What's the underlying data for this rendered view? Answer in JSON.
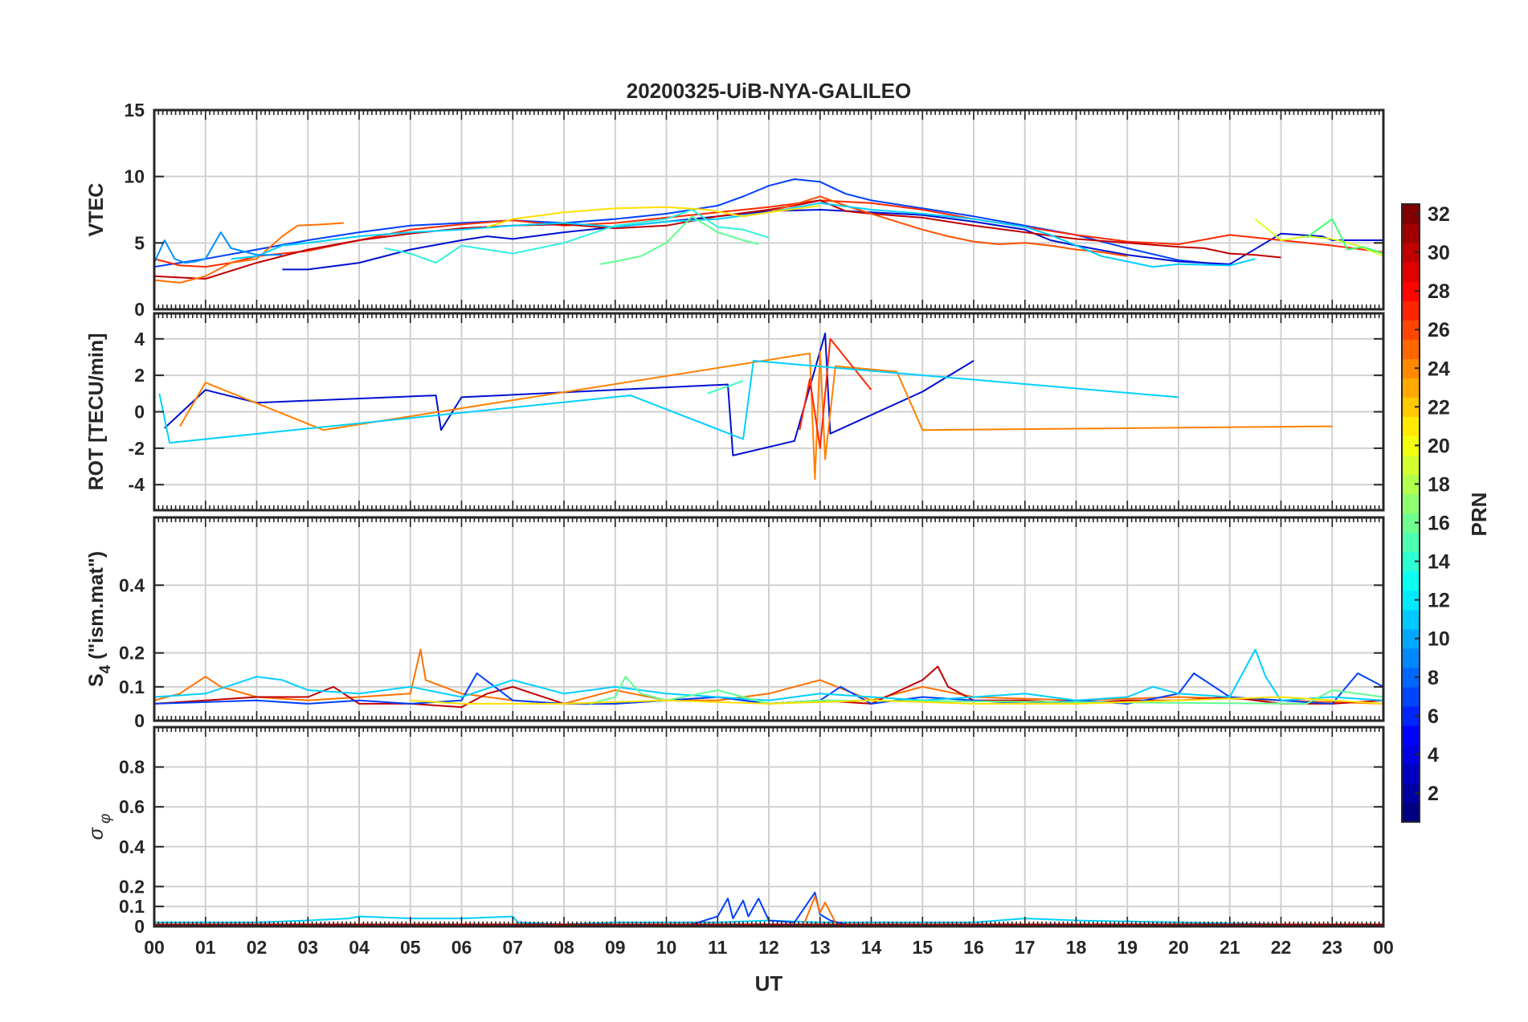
{
  "figure": {
    "title": "20200325-UiB-NYA-GALILEO"
  },
  "x_axis": {
    "label": "UT",
    "ticks": [
      "00",
      "01",
      "02",
      "03",
      "04",
      "05",
      "06",
      "07",
      "08",
      "09",
      "10",
      "11",
      "12",
      "13",
      "14",
      "15",
      "16",
      "17",
      "18",
      "19",
      "20",
      "21",
      "22",
      "23",
      "00"
    ]
  },
  "colorbar": {
    "label": "PRN",
    "ticks": [
      "2",
      "4",
      "6",
      "8",
      "10",
      "12",
      "14",
      "16",
      "18",
      "20",
      "22",
      "24",
      "26",
      "28",
      "30",
      "32"
    ],
    "range": [
      1,
      32
    ],
    "colormap": "jet"
  },
  "chart_data": [
    {
      "type": "line",
      "panel": "VTEC",
      "ylabel": "VTEC",
      "ylim": [
        0,
        15
      ],
      "yticks": [
        "0",
        "5",
        "10",
        "15"
      ],
      "xlim": [
        0,
        24
      ],
      "grid": true,
      "series": [
        {
          "prn": 3,
          "color": "#0040ff",
          "x": [
            0,
            0.5,
            1,
            2,
            3,
            4,
            5,
            6,
            7,
            8,
            9,
            10,
            11,
            11.5,
            12,
            12.5,
            13,
            13.5,
            14,
            15,
            16,
            17,
            18,
            19,
            20,
            21
          ],
          "y": [
            3.2,
            3.5,
            3.8,
            4.5,
            5.2,
            5.8,
            6.3,
            6.5,
            6.7,
            6.5,
            6.8,
            7.2,
            7.8,
            8.5,
            9.3,
            9.8,
            9.6,
            8.7,
            8.2,
            7.6,
            7,
            6.3,
            5.6,
            4.6,
            3.7,
            3.3
          ]
        },
        {
          "prn": 2,
          "color": "#0010d0",
          "x": [
            2.5,
            3,
            4,
            5,
            6,
            6.5,
            7,
            8,
            9,
            10,
            11,
            12,
            13,
            14,
            15,
            16,
            17,
            17.5,
            18,
            19,
            20,
            21,
            22,
            22.8,
            23,
            24
          ],
          "y": [
            3.0,
            3.0,
            3.5,
            4.5,
            5.2,
            5.5,
            5.3,
            5.8,
            6.2,
            6.6,
            7,
            7.4,
            7.5,
            7.3,
            7.1,
            6.6,
            6,
            5.2,
            4.8,
            4.1,
            3.6,
            3.4,
            5.7,
            5.5,
            5.2,
            5.2
          ]
        },
        {
          "prn": 27,
          "color": "#ff2a00",
          "x": [
            0,
            0.5,
            1,
            1.5,
            2,
            3,
            4,
            5,
            6,
            7,
            8,
            9,
            10,
            11,
            12,
            13,
            14,
            15,
            16,
            17,
            18,
            19,
            20,
            21,
            22,
            23,
            24
          ],
          "y": [
            3.8,
            3.3,
            3.2,
            3.5,
            4,
            4.4,
            5.2,
            6,
            6.4,
            6.7,
            6.3,
            6.5,
            6.9,
            7.3,
            7.7,
            8.2,
            8,
            7.5,
            6.8,
            6.2,
            5.6,
            5.1,
            4.9,
            5.6,
            5.2,
            4.8,
            4.3
          ]
        },
        {
          "prn": 30,
          "color": "#c00000",
          "x": [
            0,
            1,
            2,
            3,
            4,
            5,
            6,
            7,
            8,
            9,
            10,
            11,
            12,
            12.5,
            13,
            13.5,
            14,
            15,
            16,
            17,
            18,
            19,
            20,
            20.5,
            21,
            21.5,
            22
          ],
          "y": [
            2.5,
            2.3,
            3.5,
            4.5,
            5.2,
            5.7,
            6.1,
            6.3,
            6.4,
            6.1,
            6.3,
            7,
            7.5,
            7.8,
            8.2,
            7.4,
            7.2,
            6.9,
            6.3,
            5.8,
            5.3,
            5,
            4.7,
            4.6,
            4.2,
            4.1,
            3.9
          ]
        },
        {
          "prn": 24,
          "color": "#ff7000",
          "x": [
            0,
            0.5,
            1,
            1.5,
            2,
            2.5,
            2.8,
            3.3,
            3.7
          ],
          "y": [
            2.2,
            2.0,
            2.5,
            3.5,
            3.8,
            5.5,
            6.3,
            6.4,
            6.5
          ]
        },
        {
          "prn": 25,
          "color": "#ff5000",
          "x": [
            12,
            12.5,
            13,
            13.5,
            14,
            14.5,
            15,
            15.5,
            16,
            16.5,
            17,
            17.5,
            18,
            18.5,
            19
          ],
          "y": [
            7.3,
            7.9,
            8.5,
            7.8,
            7.2,
            6.6,
            6,
            5.5,
            5.1,
            4.9,
            5,
            4.8,
            4.5,
            4.3,
            4.0
          ]
        },
        {
          "prn": 12,
          "color": "#00d0ff",
          "x": [
            1.5,
            2,
            2.5,
            3,
            4,
            5,
            6,
            7,
            8,
            9,
            10,
            11,
            12,
            13,
            14,
            15,
            16,
            17,
            17.5,
            18,
            18.5,
            19,
            19.5,
            20,
            21,
            21.5
          ],
          "y": [
            3.8,
            4.0,
            4.8,
            5.0,
            5.5,
            5.8,
            6.0,
            6.3,
            6.5,
            6.2,
            6.6,
            6.8,
            7.3,
            8.0,
            7.5,
            7.2,
            6.8,
            6.2,
            5.6,
            4.8,
            4.0,
            3.6,
            3.2,
            3.4,
            3.3,
            3.8
          ]
        },
        {
          "prn": 13,
          "color": "#30f0e0",
          "x": [
            4.5,
            5,
            5.5,
            6,
            6.5,
            7,
            8,
            9,
            10,
            10.5,
            11,
            11.5,
            12
          ],
          "y": [
            4.6,
            4.2,
            3.5,
            4.8,
            4.5,
            4.2,
            5,
            6.3,
            6.8,
            7.5,
            6.2,
            6.0,
            5.4
          ]
        },
        {
          "prn": 15,
          "color": "#60ff90",
          "x": [
            8.7,
            9,
            9.5,
            10,
            10.5,
            11,
            11.5,
            11.8
          ],
          "y": [
            3.4,
            3.6,
            4.0,
            5.0,
            7.0,
            5.8,
            5.2,
            4.9
          ]
        },
        {
          "prn": 21,
          "color": "#ffe000",
          "x": [
            6.5,
            7,
            8,
            9,
            10,
            10.8,
            11.5,
            12,
            13
          ],
          "y": [
            6.2,
            6.8,
            7.3,
            7.6,
            7.7,
            7.5,
            7.0,
            7.3,
            7.8
          ]
        },
        {
          "prn": 10,
          "color": "#0090ff",
          "x": [
            0,
            0.2,
            0.4,
            0.6,
            0.8,
            1.0,
            1.3,
            1.5,
            1.8,
            2.0,
            2.5
          ],
          "y": [
            3.5,
            5.2,
            3.8,
            3.5,
            3.6,
            3.8,
            5.8,
            4.6,
            4.3,
            4.1,
            4.1
          ]
        },
        {
          "prn": 20,
          "color": "#d8ff20",
          "x": [
            21.5,
            22,
            22.5,
            23,
            23.5,
            24
          ],
          "y": [
            6.8,
            5.2,
            5.5,
            5.3,
            4.8,
            4.0
          ]
        },
        {
          "prn": 16,
          "color": "#40ff70",
          "x": [
            22.5,
            23,
            23.3,
            23.6,
            24
          ],
          "y": [
            5.4,
            6.8,
            4.5,
            4.7,
            4.2
          ]
        }
      ]
    },
    {
      "type": "line",
      "panel": "ROT",
      "ylabel": "ROT [TECU/min]",
      "ylim": [
        -5.4,
        5.4
      ],
      "yticks": [
        "-4",
        "-2",
        "0",
        "2",
        "4"
      ],
      "xlim": [
        0,
        24
      ],
      "grid": true,
      "series": [
        {
          "prn": 2,
          "color": "#0010d0",
          "x": [
            0.2,
            1.0,
            2.0,
            5.5,
            5.6,
            6.0,
            11.2,
            11.3,
            12.5,
            13.1,
            13.2,
            15.0,
            16.0
          ],
          "y": [
            -0.9,
            1.2,
            0.5,
            0.9,
            -1.0,
            0.8,
            1.5,
            -2.4,
            -1.6,
            4.3,
            -1.2,
            1.1,
            2.8
          ]
        },
        {
          "prn": 23,
          "color": "#ff8000",
          "x": [
            0.5,
            1.0,
            3.3,
            12.8,
            12.9,
            13.0,
            13.1,
            13.3,
            14.5,
            15.0,
            23.0
          ],
          "y": [
            -0.8,
            1.6,
            -1.0,
            3.2,
            -3.7,
            3.3,
            -2.6,
            2.5,
            2.2,
            -1.0,
            -0.8
          ]
        },
        {
          "prn": 27,
          "color": "#ff2a00",
          "x": [
            12.6,
            12.8,
            13.0,
            13.2,
            14.0
          ],
          "y": [
            -1.0,
            1.8,
            -2.0,
            4.0,
            1.2
          ]
        },
        {
          "prn": 12,
          "color": "#00d0ff",
          "x": [
            0.1,
            0.3,
            9.3,
            11.5,
            11.7,
            20.0
          ],
          "y": [
            1.0,
            -1.7,
            0.9,
            -1.5,
            2.8,
            0.8
          ]
        },
        {
          "prn": 14,
          "color": "#40ffc0",
          "x": [
            10.8,
            11.5
          ],
          "y": [
            1.0,
            1.7
          ]
        }
      ]
    },
    {
      "type": "line",
      "panel": "S4",
      "ylabel": "S_4 (\"ism.mat\")",
      "ylim": [
        0,
        0.6
      ],
      "yticks": [
        "0",
        "0.1",
        "0.2",
        "0.4"
      ],
      "xlim": [
        0,
        24
      ],
      "grid": true,
      "series": [
        {
          "prn": 24,
          "color": "#ff7000",
          "x": [
            0,
            0.5,
            0.8,
            1.0,
            1.3,
            2.0,
            3.0,
            5.0,
            5.2,
            5.3,
            6.0,
            7.0,
            8.0,
            9.0,
            10.0,
            11.0,
            12.0,
            12.5,
            13.0,
            14.0,
            15.0,
            16.0,
            18.0,
            20.0,
            22.0,
            24.0
          ],
          "y": [
            0.06,
            0.08,
            0.11,
            0.13,
            0.1,
            0.07,
            0.06,
            0.08,
            0.21,
            0.12,
            0.08,
            0.06,
            0.05,
            0.09,
            0.06,
            0.06,
            0.08,
            0.1,
            0.12,
            0.06,
            0.1,
            0.07,
            0.06,
            0.07,
            0.06,
            0.05
          ]
        },
        {
          "prn": 30,
          "color": "#c00000",
          "x": [
            0,
            1,
            2,
            3,
            3.5,
            4,
            5,
            6,
            6.5,
            7,
            8,
            9,
            10,
            11,
            12,
            13,
            14,
            15,
            15.3,
            15.5,
            16,
            17,
            18,
            19,
            20,
            21,
            22,
            23,
            24
          ],
          "y": [
            0.05,
            0.06,
            0.07,
            0.07,
            0.1,
            0.05,
            0.05,
            0.04,
            0.08,
            0.1,
            0.05,
            0.05,
            0.06,
            0.07,
            0.05,
            0.06,
            0.05,
            0.12,
            0.16,
            0.1,
            0.06,
            0.06,
            0.05,
            0.06,
            0.06,
            0.07,
            0.05,
            0.05,
            0.06
          ]
        },
        {
          "prn": 3,
          "color": "#0040ff",
          "x": [
            0,
            2,
            3,
            4,
            5,
            6,
            6.3,
            7,
            8,
            9,
            10,
            11,
            12,
            13,
            13.4,
            14,
            15,
            16,
            17,
            18,
            19,
            20,
            20.3,
            21,
            22,
            23,
            23.5,
            24
          ],
          "y": [
            0.05,
            0.06,
            0.05,
            0.06,
            0.05,
            0.06,
            0.14,
            0.06,
            0.05,
            0.05,
            0.06,
            0.07,
            0.05,
            0.06,
            0.1,
            0.05,
            0.07,
            0.06,
            0.05,
            0.06,
            0.05,
            0.08,
            0.14,
            0.07,
            0.06,
            0.05,
            0.14,
            0.1
          ]
        },
        {
          "prn": 12,
          "color": "#00d0ff",
          "x": [
            0,
            1,
            2,
            2.5,
            3,
            4,
            5,
            6,
            7,
            8,
            9,
            10,
            11,
            12,
            13,
            14,
            15,
            16,
            17,
            18,
            19,
            19.5,
            20,
            21,
            21.5,
            21.7,
            22,
            23,
            24
          ],
          "y": [
            0.07,
            0.08,
            0.13,
            0.12,
            0.09,
            0.08,
            0.1,
            0.07,
            0.12,
            0.08,
            0.1,
            0.08,
            0.07,
            0.06,
            0.08,
            0.07,
            0.06,
            0.07,
            0.08,
            0.06,
            0.07,
            0.1,
            0.08,
            0.07,
            0.21,
            0.13,
            0.06,
            0.07,
            0.06
          ]
        },
        {
          "prn": 15,
          "color": "#60ff90",
          "x": [
            8.5,
            9,
            9.2,
            9.5,
            10,
            11,
            12,
            13,
            22.5,
            23,
            24
          ],
          "y": [
            0.05,
            0.07,
            0.13,
            0.08,
            0.06,
            0.09,
            0.05,
            0.06,
            0.05,
            0.09,
            0.07
          ]
        },
        {
          "prn": 21,
          "color": "#ffe000",
          "x": [
            5,
            6,
            8,
            10,
            12,
            14,
            16,
            18,
            20,
            22,
            24
          ],
          "y": [
            0.06,
            0.05,
            0.05,
            0.06,
            0.05,
            0.06,
            0.05,
            0.05,
            0.06,
            0.07,
            0.05
          ]
        }
      ]
    },
    {
      "type": "line",
      "panel": "sigma_phi",
      "ylabel": "σ_φ",
      "ylim": [
        0,
        1.0
      ],
      "yticks": [
        "0",
        "0.1",
        "0.2",
        "0.4",
        "0.6",
        "0.8"
      ],
      "xlim": [
        0,
        24
      ],
      "grid": true,
      "series": [
        {
          "prn": 12,
          "color": "#00d0ff",
          "x": [
            0,
            2,
            3,
            3.8,
            4,
            5,
            6,
            7,
            7.1,
            8,
            9,
            11,
            12,
            13,
            14,
            16,
            17,
            18,
            20,
            22,
            24
          ],
          "y": [
            0.02,
            0.02,
            0.03,
            0.04,
            0.05,
            0.04,
            0.04,
            0.05,
            0.02,
            0.01,
            0.02,
            0.02,
            0.03,
            0.02,
            0.02,
            0.02,
            0.04,
            0.03,
            0.02,
            0.01,
            0.01
          ]
        },
        {
          "prn": 3,
          "color": "#0040ff",
          "x": [
            10.5,
            11,
            11.2,
            11.3,
            11.5,
            11.6,
            11.8,
            12,
            12.5,
            12.9,
            13,
            13.2,
            13.5
          ],
          "y": [
            0.01,
            0.05,
            0.14,
            0.04,
            0.13,
            0.05,
            0.14,
            0.03,
            0.02,
            0.17,
            0.06,
            0.03,
            0.01
          ]
        },
        {
          "prn": 24,
          "color": "#ff7000",
          "x": [
            12.7,
            12.9,
            13,
            13.1,
            13.3
          ],
          "y": [
            0.02,
            0.15,
            0.07,
            0.12,
            0.02
          ]
        },
        {
          "prn": 30,
          "color": "#c00000",
          "x": [
            0,
            4,
            8,
            12,
            16,
            20,
            24
          ],
          "y": [
            0.01,
            0.01,
            0.01,
            0.01,
            0.01,
            0.01,
            0.01
          ]
        }
      ]
    }
  ]
}
